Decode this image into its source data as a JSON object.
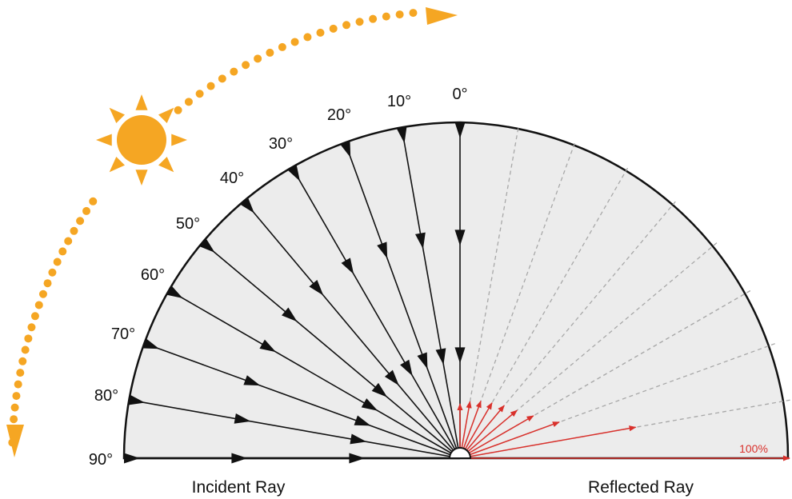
{
  "diagram": {
    "angle_labels": [
      "0°",
      "10°",
      "20°",
      "30°",
      "40°",
      "50°",
      "60°",
      "70°",
      "80°",
      "90°"
    ],
    "incident_label": "Incident Ray",
    "reflected_label": "Reflected Ray",
    "percent_label": "100%",
    "colors": {
      "fill": "#ececec",
      "outline": "#111111",
      "incident": "#111111",
      "reflected": "#d9302b",
      "guide": "#a8a8a8",
      "sun": "#f5a623"
    },
    "icons": [
      "sun-icon",
      "sun-path-arrow-icon"
    ]
  }
}
